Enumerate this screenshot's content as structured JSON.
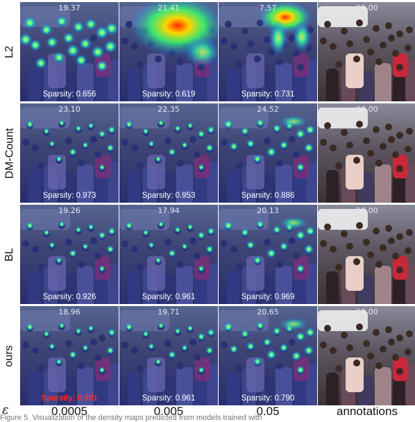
{
  "rows": [
    {
      "label": "L2",
      "counts": [
        "19.37",
        "21.41",
        "7.57"
      ],
      "sparsity": [
        "Sparsity: 0.656",
        "Sparsity: 0.619",
        "Sparsity: 0.731"
      ]
    },
    {
      "label": "DM-Count",
      "counts": [
        "23.10",
        "22.35",
        "24.52"
      ],
      "sparsity": [
        "Sparsity: 0.973",
        "Sparsity: 0.953",
        "Sparsity: 0.886"
      ]
    },
    {
      "label": "BL",
      "counts": [
        "19.26",
        "17.94",
        "20.13"
      ],
      "sparsity": [
        "Sparsity: 0.926",
        "Sparsity: 0.961",
        "Sparsity: 0.969"
      ]
    },
    {
      "label": "ours",
      "counts": [
        "18.96",
        "19.71",
        "20.65"
      ],
      "sparsity": [
        "Sparsity: 0.981",
        "Sparsity: 0.961",
        "Sparsity: 0.790"
      ]
    }
  ],
  "annotation_count": "19.00",
  "highlight": {
    "row": 3,
    "col": 0,
    "color": "#ff2a2a"
  },
  "epsilon_symbol": "ε",
  "columns": [
    "0.0005",
    "0.005",
    "0.05",
    "annotations"
  ],
  "caption_fragment": "Figure 5. Visualization of the density maps predicted from models trained with"
}
